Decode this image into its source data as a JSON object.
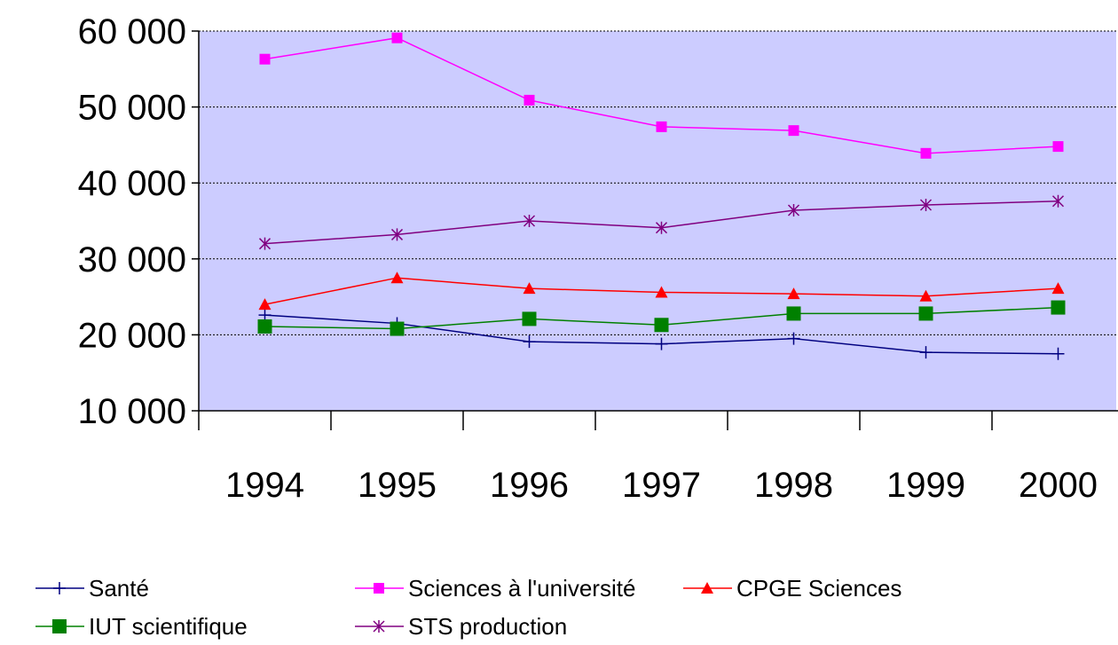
{
  "chart_data": {
    "type": "line",
    "categories": [
      "1994",
      "1995",
      "1996",
      "1997",
      "1998",
      "1999",
      "2000"
    ],
    "ylim": [
      10000,
      60000
    ],
    "yticks": [
      {
        "value": 10000,
        "label": "10 000"
      },
      {
        "value": 20000,
        "label": "20 000"
      },
      {
        "value": 30000,
        "label": "30 000"
      },
      {
        "value": 40000,
        "label": "40 000"
      },
      {
        "value": 50000,
        "label": "50 000"
      },
      {
        "value": 60000,
        "label": "60 000"
      }
    ],
    "grid": true,
    "legend": "bottom",
    "series": [
      {
        "name": "Santé",
        "color": "#000080",
        "marker": "plus",
        "values": [
          22600,
          21500,
          19100,
          18800,
          19500,
          17700,
          17500
        ]
      },
      {
        "name": "Sciences à l'université",
        "color": "#ff00ff",
        "marker": "square",
        "values": [
          56300,
          59100,
          50900,
          47400,
          46900,
          43900,
          44800
        ]
      },
      {
        "name": "CPGE Sciences",
        "color": "#ff0000",
        "marker": "triangle",
        "values": [
          24000,
          27500,
          26100,
          25600,
          25400,
          25100,
          26100
        ]
      },
      {
        "name": "IUT scientifique",
        "color": "#008000",
        "marker": "square",
        "values": [
          21100,
          20800,
          22100,
          21300,
          22800,
          22800,
          23600
        ]
      },
      {
        "name": "STS production",
        "color": "#800080",
        "marker": "asterisk",
        "values": [
          32000,
          33200,
          35000,
          34100,
          36400,
          37100,
          37600
        ]
      }
    ]
  }
}
